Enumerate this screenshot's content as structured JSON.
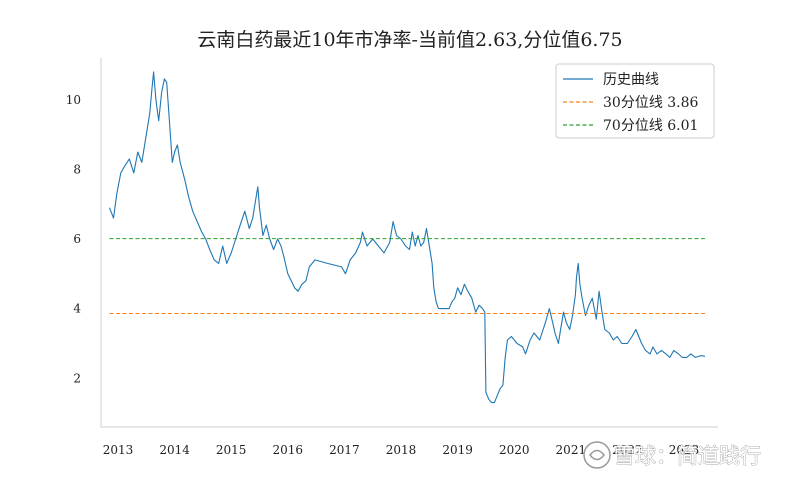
{
  "chart_data": {
    "type": "line",
    "title": "云南白药最近10年市净率-当前值2.63,分位值6.75",
    "xlabel": "",
    "ylabel": "",
    "xlim": [
      2012.7,
      2023.6
    ],
    "ylim": [
      0.6,
      11.2
    ],
    "x_ticks": [
      2013,
      2014,
      2015,
      2016,
      2017,
      2018,
      2019,
      2020,
      2021,
      2022,
      2023
    ],
    "x_tick_labels": [
      "2013",
      "2014",
      "2015",
      "2016",
      "2017",
      "2018",
      "2019",
      "2020",
      "2021",
      "2022",
      "2023"
    ],
    "y_ticks": [
      2,
      4,
      6,
      8,
      10
    ],
    "y_tick_labels": [
      "2",
      "4",
      "6",
      "8",
      "10"
    ],
    "grid": false,
    "legend_position": "top-right",
    "series": [
      {
        "name": "历史曲线",
        "color": "#1f77b4",
        "style": "solid",
        "points": [
          [
            2012.85,
            6.9
          ],
          [
            2012.92,
            6.6
          ],
          [
            2012.98,
            7.3
          ],
          [
            2013.05,
            7.9
          ],
          [
            2013.12,
            8.1
          ],
          [
            2013.2,
            8.3
          ],
          [
            2013.28,
            7.9
          ],
          [
            2013.35,
            8.5
          ],
          [
            2013.42,
            8.2
          ],
          [
            2013.5,
            9.0
          ],
          [
            2013.56,
            9.6
          ],
          [
            2013.6,
            10.3
          ],
          [
            2013.63,
            10.8
          ],
          [
            2013.67,
            10.0
          ],
          [
            2013.72,
            9.4
          ],
          [
            2013.77,
            10.2
          ],
          [
            2013.82,
            10.6
          ],
          [
            2013.86,
            10.5
          ],
          [
            2013.9,
            9.6
          ],
          [
            2013.93,
            8.9
          ],
          [
            2013.96,
            8.2
          ],
          [
            2014.0,
            8.5
          ],
          [
            2014.05,
            8.7
          ],
          [
            2014.1,
            8.2
          ],
          [
            2014.18,
            7.7
          ],
          [
            2014.25,
            7.2
          ],
          [
            2014.32,
            6.8
          ],
          [
            2014.4,
            6.5
          ],
          [
            2014.48,
            6.2
          ],
          [
            2014.55,
            6.0
          ],
          [
            2014.62,
            5.7
          ],
          [
            2014.7,
            5.4
          ],
          [
            2014.78,
            5.3
          ],
          [
            2014.85,
            5.8
          ],
          [
            2014.92,
            5.3
          ],
          [
            2015.0,
            5.6
          ],
          [
            2015.08,
            6.0
          ],
          [
            2015.16,
            6.4
          ],
          [
            2015.24,
            6.8
          ],
          [
            2015.32,
            6.3
          ],
          [
            2015.38,
            6.6
          ],
          [
            2015.44,
            7.2
          ],
          [
            2015.47,
            7.5
          ],
          [
            2015.5,
            6.9
          ],
          [
            2015.56,
            6.1
          ],
          [
            2015.62,
            6.4
          ],
          [
            2015.68,
            6.0
          ],
          [
            2015.75,
            5.7
          ],
          [
            2015.82,
            6.0
          ],
          [
            2015.88,
            5.8
          ],
          [
            2015.93,
            5.5
          ],
          [
            2016.0,
            5.0
          ],
          [
            2016.06,
            4.8
          ],
          [
            2016.12,
            4.6
          ],
          [
            2016.18,
            4.5
          ],
          [
            2016.25,
            4.7
          ],
          [
            2016.32,
            4.8
          ],
          [
            2016.38,
            5.2
          ],
          [
            2016.48,
            5.4
          ],
          [
            2016.7,
            5.3
          ],
          [
            2016.95,
            5.2
          ],
          [
            2017.02,
            5.0
          ],
          [
            2017.1,
            5.4
          ],
          [
            2017.2,
            5.6
          ],
          [
            2017.28,
            5.9
          ],
          [
            2017.32,
            6.2
          ],
          [
            2017.4,
            5.8
          ],
          [
            2017.5,
            6.0
          ],
          [
            2017.6,
            5.8
          ],
          [
            2017.7,
            5.6
          ],
          [
            2017.8,
            5.9
          ],
          [
            2017.86,
            6.5
          ],
          [
            2017.92,
            6.1
          ],
          [
            2018.0,
            6.0
          ],
          [
            2018.08,
            5.8
          ],
          [
            2018.15,
            5.7
          ],
          [
            2018.2,
            6.2
          ],
          [
            2018.25,
            5.8
          ],
          [
            2018.3,
            6.1
          ],
          [
            2018.35,
            5.8
          ],
          [
            2018.4,
            5.9
          ],
          [
            2018.45,
            6.3
          ],
          [
            2018.5,
            5.8
          ],
          [
            2018.55,
            5.3
          ],
          [
            2018.58,
            4.6
          ],
          [
            2018.62,
            4.2
          ],
          [
            2018.66,
            4.0
          ],
          [
            2018.75,
            4.0
          ],
          [
            2018.85,
            4.0
          ],
          [
            2018.9,
            4.2
          ],
          [
            2018.95,
            4.3
          ],
          [
            2019.0,
            4.6
          ],
          [
            2019.06,
            4.4
          ],
          [
            2019.12,
            4.7
          ],
          [
            2019.18,
            4.5
          ],
          [
            2019.25,
            4.3
          ],
          [
            2019.32,
            3.9
          ],
          [
            2019.38,
            4.1
          ],
          [
            2019.44,
            4.0
          ],
          [
            2019.48,
            3.9
          ],
          [
            2019.5,
            1.6
          ],
          [
            2019.55,
            1.4
          ],
          [
            2019.6,
            1.3
          ],
          [
            2019.65,
            1.3
          ],
          [
            2019.7,
            1.5
          ],
          [
            2019.75,
            1.7
          ],
          [
            2019.8,
            1.8
          ],
          [
            2019.84,
            2.6
          ],
          [
            2019.88,
            3.1
          ],
          [
            2019.95,
            3.2
          ],
          [
            2020.05,
            3.0
          ],
          [
            2020.15,
            2.9
          ],
          [
            2020.2,
            2.7
          ],
          [
            2020.28,
            3.1
          ],
          [
            2020.35,
            3.3
          ],
          [
            2020.45,
            3.1
          ],
          [
            2020.55,
            3.6
          ],
          [
            2020.62,
            4.0
          ],
          [
            2020.68,
            3.6
          ],
          [
            2020.72,
            3.3
          ],
          [
            2020.78,
            3.0
          ],
          [
            2020.82,
            3.4
          ],
          [
            2020.87,
            3.9
          ],
          [
            2020.92,
            3.6
          ],
          [
            2020.98,
            3.4
          ],
          [
            2021.03,
            3.8
          ],
          [
            2021.08,
            4.4
          ],
          [
            2021.1,
            4.9
          ],
          [
            2021.13,
            5.3
          ],
          [
            2021.16,
            4.7
          ],
          [
            2021.2,
            4.3
          ],
          [
            2021.26,
            3.8
          ],
          [
            2021.32,
            4.1
          ],
          [
            2021.38,
            4.3
          ],
          [
            2021.45,
            3.7
          ],
          [
            2021.5,
            4.5
          ],
          [
            2021.55,
            3.9
          ],
          [
            2021.6,
            3.4
          ],
          [
            2021.68,
            3.3
          ],
          [
            2021.75,
            3.1
          ],
          [
            2021.82,
            3.2
          ],
          [
            2021.9,
            3.0
          ],
          [
            2022.0,
            3.0
          ],
          [
            2022.08,
            3.2
          ],
          [
            2022.15,
            3.4
          ],
          [
            2022.2,
            3.2
          ],
          [
            2022.25,
            3.0
          ],
          [
            2022.32,
            2.8
          ],
          [
            2022.4,
            2.7
          ],
          [
            2022.45,
            2.9
          ],
          [
            2022.52,
            2.7
          ],
          [
            2022.6,
            2.8
          ],
          [
            2022.68,
            2.7
          ],
          [
            2022.75,
            2.6
          ],
          [
            2022.82,
            2.8
          ],
          [
            2022.9,
            2.7
          ],
          [
            2022.97,
            2.6
          ],
          [
            2023.05,
            2.6
          ],
          [
            2023.12,
            2.7
          ],
          [
            2023.2,
            2.6
          ],
          [
            2023.3,
            2.65
          ],
          [
            2023.37,
            2.63
          ]
        ]
      },
      {
        "name": "30分位线  3.86",
        "color": "#ff7f0e",
        "style": "dashed",
        "value": 3.86,
        "x_range": [
          2012.85,
          2023.37
        ]
      },
      {
        "name": "70分位线  6.01",
        "color": "#2ca02c",
        "style": "dashed",
        "value": 6.01,
        "x_range": [
          2012.85,
          2023.37
        ]
      }
    ]
  },
  "watermark": {
    "text": "雪球：简道践行",
    "shown_text": "雪球：简道践行"
  }
}
